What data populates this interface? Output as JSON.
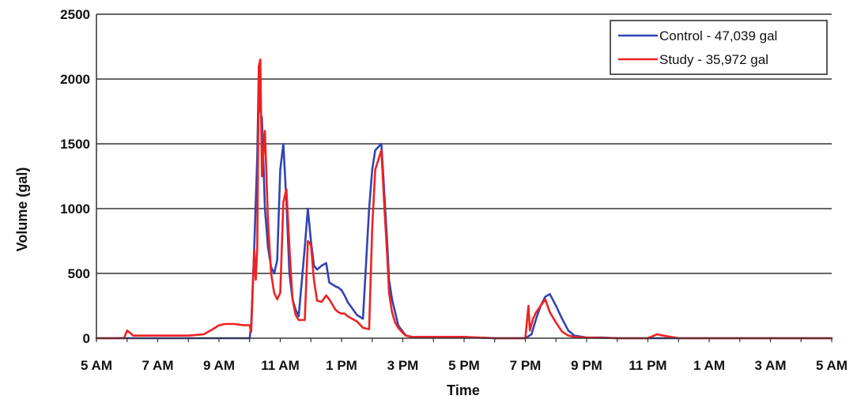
{
  "chart_data": {
    "type": "line",
    "title": "",
    "xlabel": "Time",
    "ylabel": "Volume (gal)",
    "ylim": [
      0,
      2500
    ],
    "yticks": [
      0,
      500,
      1000,
      1500,
      2000,
      2500
    ],
    "xlim": [
      0,
      24
    ],
    "x_unit": "hours after 5 AM",
    "xtick_labels": [
      "5 AM",
      "7 AM",
      "9 AM",
      "11 AM",
      "1 PM",
      "3 PM",
      "5 PM",
      "7 PM",
      "9 PM",
      "11 PM",
      "1 AM",
      "3 AM",
      "5 AM"
    ],
    "grid": "horizontal",
    "legend_position": "top-right",
    "colors": {
      "Control": "#3344b3",
      "Study": "#ee2222",
      "grid": "#333333",
      "axis": "#333333"
    },
    "series": [
      {
        "name": "Control - 47,039 gal",
        "color": "#3344b3",
        "x": [
          0,
          1.0,
          1.1,
          1.2,
          1.4,
          1.6,
          1.8,
          2.0,
          3.0,
          4.0,
          5.0,
          5.05,
          5.15,
          5.25,
          5.3,
          5.35,
          5.4,
          5.5,
          5.6,
          5.7,
          5.8,
          5.9,
          6.0,
          6.1,
          6.2,
          6.3,
          6.4,
          6.5,
          6.6,
          6.8,
          6.9,
          7.0,
          7.1,
          7.2,
          7.35,
          7.5,
          7.6,
          7.8,
          7.9,
          8.0,
          8.1,
          8.2,
          8.5,
          8.7,
          8.9,
          9.0,
          9.1,
          9.3,
          9.4,
          9.5,
          9.55,
          9.65,
          9.75,
          9.85,
          10.0,
          10.1,
          10.3,
          10.5,
          10.7,
          11.0,
          12.0,
          13.0,
          14.0,
          14.2,
          14.35,
          14.5,
          14.65,
          14.8,
          15.0,
          15.2,
          15.4,
          15.6,
          16.0,
          16.5,
          17.0,
          18.0,
          19.0,
          19.5,
          20.0,
          21.0,
          22.0,
          23.0,
          24.0
        ],
        "y": [
          0,
          0,
          0,
          0,
          0,
          0,
          0,
          0,
          0,
          0,
          0,
          100,
          700,
          1400,
          2100,
          1750,
          1700,
          1000,
          700,
          550,
          500,
          600,
          1300,
          1500,
          1050,
          500,
          300,
          220,
          170,
          700,
          1000,
          750,
          560,
          530,
          560,
          580,
          430,
          400,
          390,
          370,
          330,
          280,
          180,
          150,
          1000,
          1300,
          1450,
          1500,
          1100,
          700,
          450,
          300,
          200,
          100,
          50,
          20,
          10,
          10,
          10,
          10,
          10,
          0,
          0,
          30,
          150,
          250,
          320,
          340,
          250,
          150,
          60,
          20,
          5,
          5,
          0,
          0,
          0,
          0,
          0,
          0,
          0,
          0,
          0
        ]
      },
      {
        "name": "Study - 35,972 gal",
        "color": "#ee2222",
        "x": [
          0,
          0.9,
          1.0,
          1.1,
          1.2,
          1.4,
          1.6,
          2.0,
          3.0,
          3.5,
          3.8,
          4.0,
          4.2,
          4.5,
          4.8,
          4.95,
          5.0,
          5.05,
          5.15,
          5.2,
          5.25,
          5.3,
          5.35,
          5.4,
          5.5,
          5.6,
          5.7,
          5.8,
          5.9,
          6.0,
          6.1,
          6.2,
          6.3,
          6.4,
          6.5,
          6.6,
          6.8,
          6.9,
          7.0,
          7.1,
          7.2,
          7.35,
          7.5,
          7.6,
          7.8,
          7.9,
          8.0,
          8.1,
          8.2,
          8.5,
          8.7,
          8.9,
          9.0,
          9.1,
          9.3,
          9.4,
          9.5,
          9.55,
          9.65,
          9.75,
          9.85,
          10.0,
          10.1,
          10.3,
          10.5,
          10.7,
          11.0,
          12.0,
          13.0,
          14.0,
          14.1,
          14.15,
          14.25,
          14.35,
          14.5,
          14.65,
          14.8,
          15.0,
          15.2,
          15.4,
          15.6,
          16.0,
          17.0,
          18.0,
          18.3,
          18.5,
          19.0,
          20.0,
          21.0,
          22.0,
          23.0,
          24.0
        ],
        "y": [
          0,
          0,
          60,
          40,
          20,
          20,
          20,
          20,
          20,
          30,
          70,
          100,
          110,
          110,
          100,
          100,
          100,
          50,
          680,
          450,
          700,
          2100,
          2150,
          1250,
          1600,
          900,
          500,
          350,
          300,
          350,
          1050,
          1150,
          700,
          300,
          180,
          140,
          140,
          750,
          720,
          450,
          290,
          280,
          330,
          300,
          220,
          200,
          190,
          190,
          170,
          130,
          80,
          70,
          850,
          1300,
          1450,
          1000,
          600,
          350,
          200,
          120,
          80,
          40,
          20,
          10,
          10,
          10,
          10,
          10,
          0,
          0,
          250,
          60,
          150,
          200,
          250,
          300,
          200,
          120,
          50,
          20,
          10,
          5,
          0,
          0,
          30,
          20,
          0,
          0,
          0,
          0,
          0,
          0
        ]
      }
    ]
  }
}
